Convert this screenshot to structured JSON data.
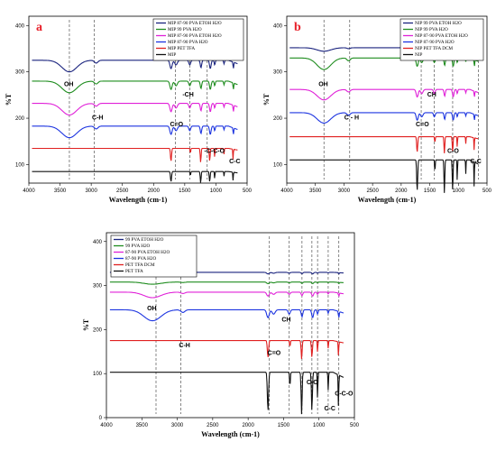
{
  "chart_data": [
    {
      "panel": "a",
      "type": "line",
      "xlabel": "Wavelength (cm-1)",
      "ylabel": "%T",
      "xlim": [
        4000,
        500
      ],
      "ylim": [
        60,
        420
      ],
      "xticks": [
        4000,
        3500,
        3000,
        2500,
        2000,
        1500,
        1000,
        500
      ],
      "yticks": [
        100,
        200,
        300,
        400
      ],
      "legend": "top-right",
      "ref_lines": [
        3350,
        2950,
        1650,
        1420,
        1140
      ],
      "annotations": [
        "OH",
        "C-H",
        "C=O",
        "-CH",
        "-C-C-O",
        "C-C"
      ],
      "series": [
        {
          "name": "MIP 87-90 PVA ETOH H2O",
          "color": "#1a237e",
          "baseline": 325,
          "scale": 1.0
        },
        {
          "name": "MIP 99 PVA H2O",
          "color": "#1e8c1e",
          "baseline": 280,
          "scale": 1.0
        },
        {
          "name": "MIP 87-90 PVA ETOH H2O",
          "color": "#e020d8",
          "baseline": 232,
          "scale": 1.0
        },
        {
          "name": "MIP 87-90 PVA H2O",
          "color": "#1c34e0",
          "baseline": 183,
          "scale": 1.0
        },
        {
          "name": "MIP PET TFA",
          "color": "#e02020",
          "baseline": 135,
          "scale": 0.5
        },
        {
          "name": "MIP",
          "color": "#111111",
          "baseline": 85,
          "scale": 0.4
        }
      ]
    },
    {
      "panel": "b",
      "type": "line",
      "xlabel": "Wavelength (cm-1)",
      "ylabel": "%T",
      "xlim": [
        4000,
        500
      ],
      "ylim": [
        60,
        420
      ],
      "xticks": [
        4000,
        3500,
        3000,
        2500,
        2000,
        1500,
        1000,
        500
      ],
      "yticks": [
        100,
        200,
        300,
        400
      ],
      "legend": "top-right",
      "ref_lines": [
        3350,
        2900,
        1650,
        1420,
        1100,
        650
      ],
      "annotations": [
        "OH",
        "C - H",
        "C=O",
        "CH",
        "C-O",
        "C-C"
      ],
      "series": [
        {
          "name": "NIP 99 PVA ETOH H2O",
          "color": "#1a237e",
          "baseline": 352,
          "scale": 0.3
        },
        {
          "name": "NIP 99 PVA H2O",
          "color": "#1e8c1e",
          "baseline": 330,
          "scale": 1.0
        },
        {
          "name": "NIP 87-90 PVA ETOH H2O",
          "color": "#e020d8",
          "baseline": 262,
          "scale": 0.9
        },
        {
          "name": "NIP 87-90 PVA H2O",
          "color": "#1c34e0",
          "baseline": 212,
          "scale": 0.9
        },
        {
          "name": "NIP PET TFA DCM",
          "color": "#e02020",
          "baseline": 160,
          "scale": 0.6
        },
        {
          "name": "NIP",
          "color": "#111111",
          "baseline": 110,
          "scale": 1.2
        }
      ]
    },
    {
      "panel": "c",
      "type": "line",
      "xlabel": "Wavelength (cm-1)",
      "ylabel": "%T",
      "xlim": [
        4000,
        500
      ],
      "ylim": [
        0,
        420
      ],
      "xticks": [
        4000,
        3500,
        3000,
        2500,
        2000,
        1500,
        1000,
        500
      ],
      "yticks": [
        0,
        100,
        200,
        300,
        400
      ],
      "legend": "top-left",
      "ref_lines": [
        3300,
        2950,
        1700,
        1420,
        1240,
        1100,
        1020,
        870,
        720
      ],
      "annotations": [
        "OH",
        "C-H",
        "C=O",
        "CH",
        "C-O",
        "C-C-O",
        "C-C"
      ],
      "series": [
        {
          "name": "99 PVA ETOH H2O",
          "color": "#1a237e",
          "baseline": 330,
          "scale": 0.2
        },
        {
          "name": "99 PVA  H2O",
          "color": "#1e8c1e",
          "baseline": 308,
          "scale": 0.2
        },
        {
          "name": "87-90 PVA ETOH H2O",
          "color": "#e020d8",
          "baseline": 285,
          "scale": 0.5
        },
        {
          "name": "87-90 PVA H2O",
          "color": "#1c34e0",
          "baseline": 245,
          "scale": 1.0
        },
        {
          "name": "PET TFA DCM",
          "color": "#e02020",
          "baseline": 175,
          "scale": 0.7
        },
        {
          "name": "PET TFA",
          "color": "#111111",
          "baseline": 103,
          "scale": 1.6
        }
      ]
    }
  ]
}
